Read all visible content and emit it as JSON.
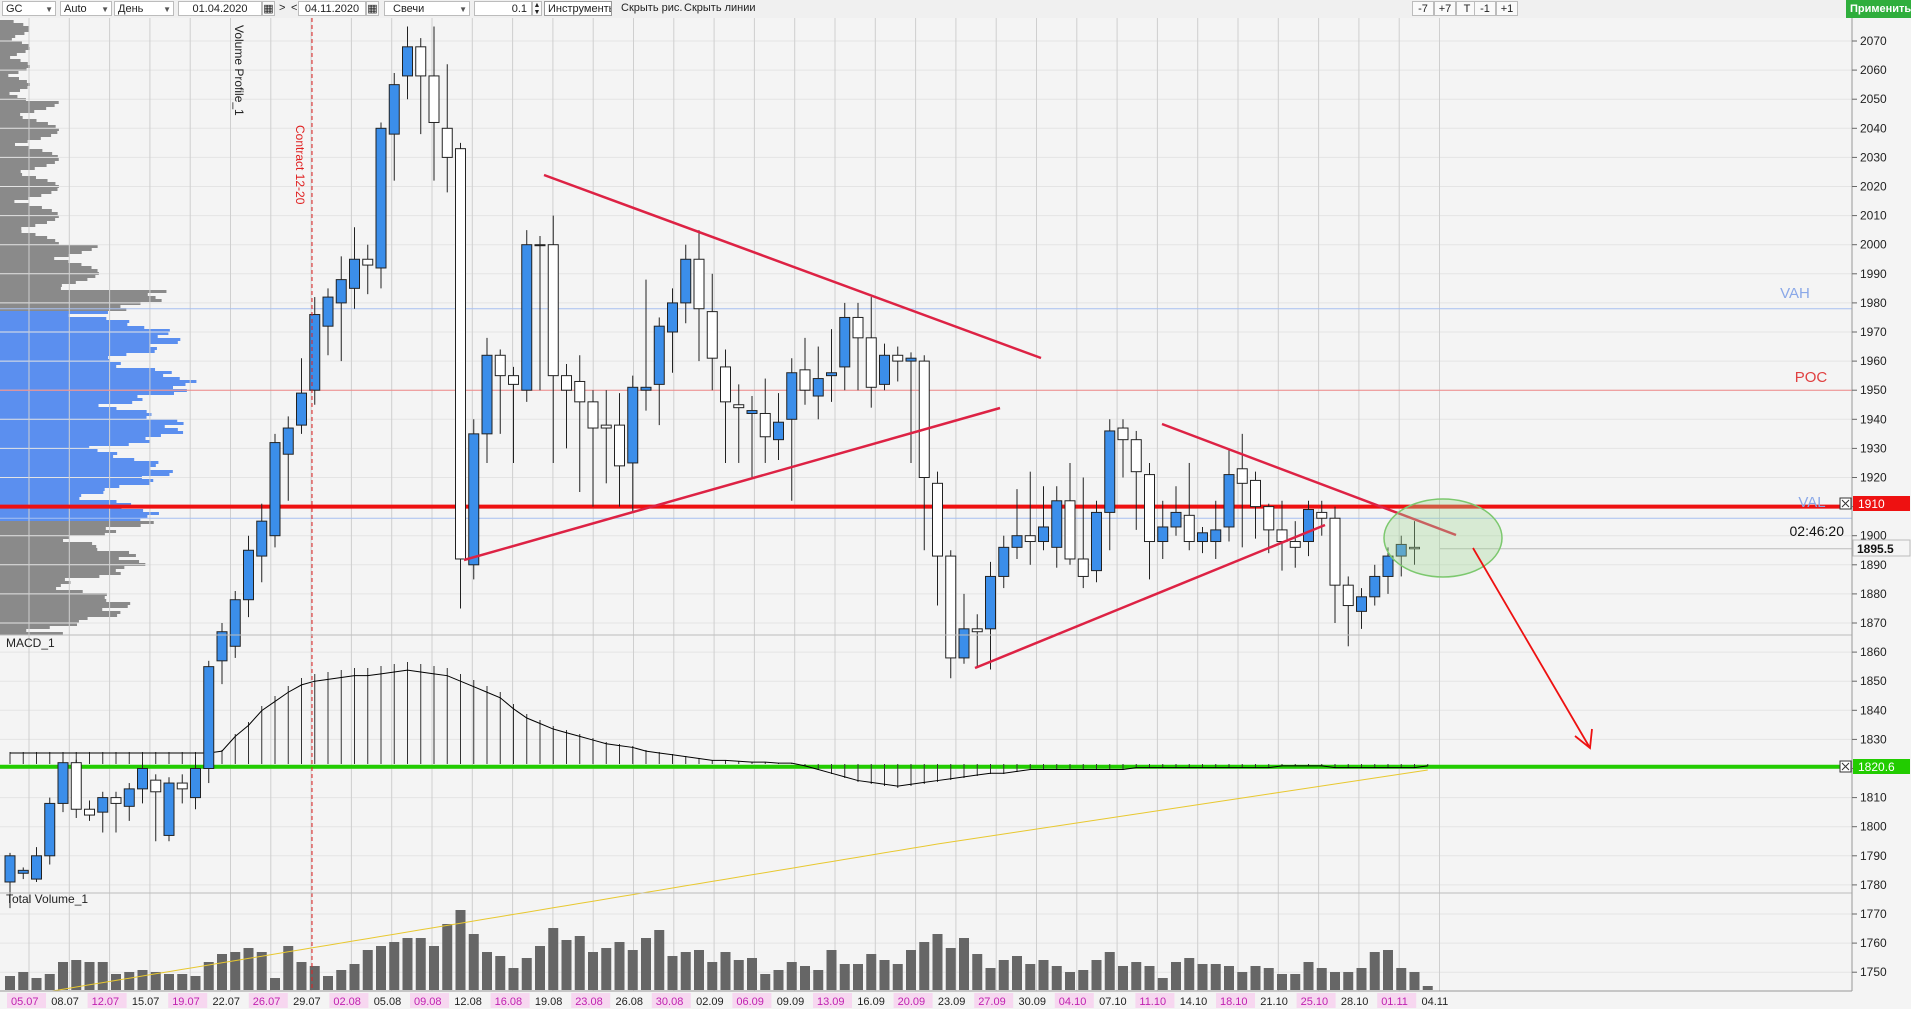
{
  "toolbar": {
    "symbol": "GC",
    "mode": "Auto",
    "period": "День",
    "date_from": "01.04.2020",
    "nav_next": ">",
    "nav_prev": "<",
    "date_to": "04.11.2020",
    "chart_type": "Свечи",
    "step": "0.1",
    "instruments_label": "Инструменты",
    "hide_drawings": "Скрыть рис.",
    "hide_lines": "Скрыть линии",
    "btn_minus7": "-7",
    "btn_plus7": "+7",
    "btn_t": "T",
    "btn_minus1": "-1",
    "btn_plus1": "+1",
    "apply": "Применить"
  },
  "labels": {
    "volume_profile": "Volume Profile_1",
    "contract": "Contract 12-20",
    "macd": "MACD_1",
    "total_volume": "Total Volume_1",
    "vah": "VAH",
    "poc": "POC",
    "val": "VAL",
    "timer": "02:46:20",
    "current_price": "1895.5",
    "level_1910": "1910",
    "level_1820": "1820.6"
  },
  "colors": {
    "bull_candle": "#3b8eea",
    "bear_candle": "#ffffff",
    "resistance_line": "#ee1111",
    "support_line": "#22cc00",
    "pattern_line": "#dd2244",
    "arrow": "#ee1111",
    "profile_value_area": "#5b8fef",
    "profile_outside": "#8a8a8a",
    "price_tag_current": "#f5f5f5",
    "vah_text": "#8aa8e8",
    "poc_text": "#e04040",
    "macd_signal": "#e8c830",
    "macd_line": "#000000",
    "volume_bar": "#666666"
  },
  "y_axis": [
    "2070",
    "2060",
    "2050",
    "2040",
    "2030",
    "2020",
    "2010",
    "2000",
    "1990",
    "1980",
    "1970",
    "1960",
    "1950",
    "1940",
    "1930",
    "1920",
    "1910",
    "1900",
    "1890",
    "1880",
    "1870",
    "1860",
    "1850",
    "1840",
    "1830",
    "1820",
    "1810",
    "1800",
    "1790",
    "1780",
    "1770",
    "1760",
    "1750"
  ],
  "x_axis": [
    {
      "d": "05.07",
      "hl": true
    },
    {
      "d": "08.07",
      "hl": false
    },
    {
      "d": "12.07",
      "hl": true
    },
    {
      "d": "15.07",
      "hl": false
    },
    {
      "d": "19.07",
      "hl": true
    },
    {
      "d": "22.07",
      "hl": false
    },
    {
      "d": "26.07",
      "hl": true
    },
    {
      "d": "29.07",
      "hl": false
    },
    {
      "d": "02.08",
      "hl": true
    },
    {
      "d": "05.08",
      "hl": false
    },
    {
      "d": "09.08",
      "hl": true
    },
    {
      "d": "12.08",
      "hl": false
    },
    {
      "d": "16.08",
      "hl": true
    },
    {
      "d": "19.08",
      "hl": false
    },
    {
      "d": "23.08",
      "hl": true
    },
    {
      "d": "26.08",
      "hl": false
    },
    {
      "d": "30.08",
      "hl": true
    },
    {
      "d": "02.09",
      "hl": false
    },
    {
      "d": "06.09",
      "hl": true
    },
    {
      "d": "09.09",
      "hl": false
    },
    {
      "d": "13.09",
      "hl": true
    },
    {
      "d": "16.09",
      "hl": false
    },
    {
      "d": "20.09",
      "hl": true
    },
    {
      "d": "23.09",
      "hl": false
    },
    {
      "d": "27.09",
      "hl": true
    },
    {
      "d": "30.09",
      "hl": false
    },
    {
      "d": "04.10",
      "hl": true
    },
    {
      "d": "07.10",
      "hl": false
    },
    {
      "d": "11.10",
      "hl": true
    },
    {
      "d": "14.10",
      "hl": false
    },
    {
      "d": "18.10",
      "hl": true
    },
    {
      "d": "21.10",
      "hl": false
    },
    {
      "d": "25.10",
      "hl": true
    },
    {
      "d": "28.10",
      "hl": false
    },
    {
      "d": "01.11",
      "hl": true
    },
    {
      "d": "04.11",
      "hl": false
    }
  ],
  "chart_data": {
    "type": "candlestick",
    "symbol": "GC",
    "y_range": [
      1744,
      2075
    ],
    "levels": {
      "vah": 1978,
      "poc": 1950,
      "val": 1906,
      "resistance": 1910,
      "support": 1820.6,
      "current": 1895.5
    },
    "candles": [
      [
        1781,
        1790,
        1772,
        1791
      ],
      [
        1784,
        1785,
        1782,
        1786
      ],
      [
        1782,
        1790,
        1781,
        1793
      ],
      [
        1790,
        1808,
        1787,
        1810
      ],
      [
        1808,
        1822,
        1805,
        1825
      ],
      [
        1822,
        1806,
        1803,
        1823
      ],
      [
        1806,
        1804,
        1802,
        1809
      ],
      [
        1805,
        1810,
        1798,
        1812
      ],
      [
        1810,
        1808,
        1798,
        1812
      ],
      [
        1807,
        1813,
        1802,
        1815
      ],
      [
        1813,
        1820,
        1808,
        1822
      ],
      [
        1816,
        1812,
        1795,
        1818
      ],
      [
        1797,
        1815,
        1795,
        1817
      ],
      [
        1815,
        1813,
        1808,
        1818
      ],
      [
        1810,
        1820,
        1806,
        1824
      ],
      [
        1820,
        1855,
        1815,
        1857
      ],
      [
        1857,
        1867,
        1849,
        1870
      ],
      [
        1862,
        1878,
        1858,
        1881
      ],
      [
        1878,
        1895,
        1872,
        1900
      ],
      [
        1893,
        1905,
        1884,
        1911
      ],
      [
        1900,
        1932,
        1896,
        1935
      ],
      [
        1928,
        1937,
        1912,
        1941
      ],
      [
        1938,
        1949,
        1935,
        1961
      ],
      [
        1950,
        1976,
        1945,
        1982
      ],
      [
        1972,
        1982,
        1962,
        1985
      ],
      [
        1980,
        1988,
        1960,
        1996
      ],
      [
        1985,
        1995,
        1978,
        2006
      ],
      [
        1995,
        1993,
        1983,
        2000
      ],
      [
        1992,
        2040,
        1985,
        2042
      ],
      [
        2038,
        2055,
        2022,
        2059
      ],
      [
        2058,
        2068,
        2050,
        2075
      ],
      [
        2068,
        2058,
        2038,
        2071
      ],
      [
        2058,
        2042,
        2022,
        2075
      ],
      [
        2040,
        2030,
        2018,
        2062
      ],
      [
        2033,
        1892,
        1875,
        2035
      ],
      [
        1890,
        1935,
        1885,
        1940
      ],
      [
        1935,
        1962,
        1925,
        1968
      ],
      [
        1962,
        1955,
        1935,
        1964
      ],
      [
        1955,
        1952,
        1925,
        1958
      ],
      [
        1950,
        2000,
        1946,
        2005
      ],
      [
        2000,
        2000,
        1950,
        2003
      ],
      [
        2000,
        1955,
        1925,
        2010
      ],
      [
        1955,
        1950,
        1930,
        1959
      ],
      [
        1953,
        1946,
        1915,
        1962
      ],
      [
        1946,
        1937,
        1910,
        1950
      ],
      [
        1938,
        1937,
        1918,
        1950
      ],
      [
        1938,
        1924,
        1910,
        1949
      ],
      [
        1925,
        1951,
        1908,
        1955
      ],
      [
        1950,
        1951,
        1943,
        1988
      ],
      [
        1952,
        1972,
        1938,
        1975
      ],
      [
        1970,
        1980,
        1956,
        1985
      ],
      [
        1980,
        1995,
        1973,
        2000
      ],
      [
        1995,
        1978,
        1960,
        2005
      ],
      [
        1977,
        1961,
        1950,
        1990
      ],
      [
        1958,
        1946,
        1925,
        1964
      ],
      [
        1945,
        1944,
        1925,
        1952
      ],
      [
        1942,
        1943,
        1920,
        1948
      ],
      [
        1942,
        1934,
        1925,
        1954
      ],
      [
        1933,
        1939,
        1926,
        1949
      ],
      [
        1940,
        1956,
        1912,
        1961
      ],
      [
        1957,
        1950,
        1945,
        1968
      ],
      [
        1948,
        1954,
        1940,
        1965
      ],
      [
        1955,
        1956,
        1946,
        1971
      ],
      [
        1958,
        1975,
        1950,
        1980
      ],
      [
        1975,
        1968,
        1950,
        1980
      ],
      [
        1968,
        1951,
        1944,
        1982
      ],
      [
        1952,
        1962,
        1950,
        1966
      ],
      [
        1962,
        1960,
        1953,
        1965
      ],
      [
        1960,
        1961,
        1925,
        1963
      ],
      [
        1960,
        1920,
        1895,
        1962
      ],
      [
        1918,
        1893,
        1876,
        1922
      ],
      [
        1893,
        1858,
        1851,
        1895
      ],
      [
        1858,
        1868,
        1856,
        1880
      ],
      [
        1868,
        1867,
        1855,
        1873
      ],
      [
        1868,
        1886,
        1854,
        1891
      ],
      [
        1886,
        1896,
        1882,
        1900
      ],
      [
        1896,
        1900,
        1892,
        1916
      ],
      [
        1900,
        1898,
        1890,
        1922
      ],
      [
        1898,
        1903,
        1895,
        1917
      ],
      [
        1896,
        1912,
        1889,
        1917
      ],
      [
        1912,
        1892,
        1890,
        1925
      ],
      [
        1892,
        1886,
        1882,
        1920
      ],
      [
        1888,
        1908,
        1884,
        1912
      ],
      [
        1908,
        1936,
        1895,
        1940
      ],
      [
        1937,
        1933,
        1920,
        1940
      ],
      [
        1933,
        1922,
        1902,
        1936
      ],
      [
        1921,
        1898,
        1885,
        1925
      ],
      [
        1898,
        1903,
        1892,
        1912
      ],
      [
        1903,
        1908,
        1900,
        1917
      ],
      [
        1907,
        1898,
        1895,
        1925
      ],
      [
        1898,
        1901,
        1894,
        1903
      ],
      [
        1898,
        1902,
        1892,
        1912
      ],
      [
        1903,
        1921,
        1898,
        1930
      ],
      [
        1923,
        1918,
        1896,
        1935
      ],
      [
        1919,
        1910,
        1899,
        1922
      ],
      [
        1910,
        1902,
        1894,
        1911
      ],
      [
        1902,
        1898,
        1888,
        1912
      ],
      [
        1898,
        1896,
        1889,
        1905
      ],
      [
        1898,
        1909,
        1893,
        1912
      ],
      [
        1908,
        1906,
        1900,
        1912
      ],
      [
        1906,
        1883,
        1870,
        1910
      ],
      [
        1883,
        1876,
        1862,
        1886
      ],
      [
        1874,
        1879,
        1868,
        1882
      ],
      [
        1879,
        1886,
        1876,
        1890
      ],
      [
        1886,
        1893,
        1880,
        1896
      ],
      [
        1893,
        1897,
        1886,
        1900
      ],
      [
        1896,
        1895.5,
        1890,
        1905
      ]
    ],
    "volume": [
      14,
      18,
      12,
      16,
      28,
      30,
      28,
      28,
      16,
      18,
      20,
      18,
      16,
      16,
      14,
      28,
      36,
      38,
      42,
      38,
      12,
      44,
      28,
      24,
      14,
      20,
      26,
      40,
      44,
      48,
      52,
      52,
      44,
      66,
      80,
      56,
      38,
      34,
      22,
      32,
      44,
      62,
      50,
      54,
      38,
      42,
      48,
      40,
      52,
      60,
      34,
      38,
      40,
      28,
      38,
      30,
      32,
      16,
      20,
      28,
      24,
      20,
      40,
      26,
      26,
      36,
      30,
      26,
      40,
      48,
      56,
      42,
      52,
      36,
      22,
      30,
      34,
      26,
      30,
      24,
      18,
      20,
      30,
      38,
      24,
      28,
      24,
      12,
      28,
      32,
      26,
      26,
      24,
      18,
      24,
      22,
      16,
      16,
      28,
      22,
      18,
      18,
      22,
      38,
      40,
      22,
      18,
      4
    ],
    "macd_hist": [
      12,
      12,
      12,
      12,
      12,
      12,
      12,
      12,
      12,
      12,
      12,
      12,
      12,
      12,
      12,
      12,
      14,
      30,
      42,
      58,
      68,
      78,
      86,
      90,
      92,
      94,
      96,
      96,
      98,
      100,
      102,
      100,
      98,
      96,
      90,
      84,
      78,
      72,
      60,
      50,
      44,
      38,
      34,
      30,
      26,
      22,
      20,
      18,
      14,
      12,
      10,
      8,
      6,
      4,
      4,
      3,
      2,
      2,
      1,
      1,
      -2,
      -6,
      -10,
      -14,
      -18,
      -20,
      -22,
      -24,
      -22,
      -20,
      -18,
      -16,
      -14,
      -12,
      -10,
      -10,
      -8,
      -6,
      -6,
      -6,
      -6,
      -6,
      -6,
      -6,
      -6,
      -4,
      -4,
      -4,
      -4,
      -4,
      -4,
      -4,
      -4,
      -4,
      -4,
      -4,
      -2,
      -2,
      -2,
      -2,
      -4,
      -4,
      -4,
      -4,
      -4,
      -4,
      -4,
      -2
    ]
  }
}
